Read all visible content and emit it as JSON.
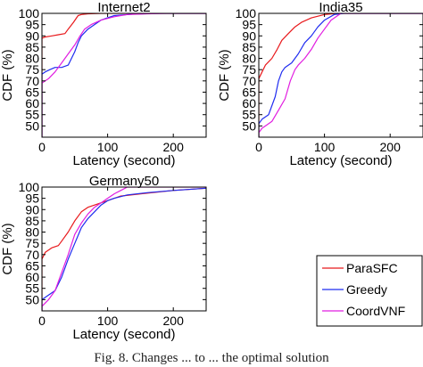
{
  "caption": "Fig. 8. Changes ... to ... the optimal solution",
  "colors": {
    "ParaSFC": "#e8191c",
    "Greedy": "#1f2cf0",
    "CoordVNF": "#e11de0"
  },
  "legend": [
    "ParaSFC",
    "Greedy",
    "CoordVNF"
  ],
  "chart_data": [
    {
      "type": "line",
      "title": "Internet2",
      "xlabel": "Latency (second)",
      "ylabel": "CDF (%)",
      "xlim": [
        0,
        250
      ],
      "ylim": [
        45,
        100
      ],
      "xticks": [
        0,
        100,
        200
      ],
      "yticks": [
        50,
        55,
        60,
        65,
        70,
        75,
        80,
        85,
        90,
        95,
        100
      ],
      "grid": false,
      "series": [
        {
          "name": "ParaSFC",
          "x": [
            0,
            0,
            5,
            15,
            25,
            35,
            40,
            48,
            55,
            60,
            70,
            90,
            120,
            250
          ],
          "y": [
            45,
            89,
            89.5,
            90,
            90.5,
            91,
            93,
            96,
            99,
            99.5,
            99.8,
            100,
            100,
            100
          ]
        },
        {
          "name": "Greedy",
          "x": [
            0,
            0,
            5,
            12,
            20,
            30,
            40,
            50,
            55,
            60,
            70,
            80,
            90,
            110,
            140,
            180,
            250
          ],
          "y": [
            45,
            73,
            74,
            75,
            76,
            76,
            77,
            83,
            87,
            90,
            93,
            95,
            97,
            99,
            99.7,
            100,
            100
          ]
        },
        {
          "name": "CoordVNF",
          "x": [
            0,
            0,
            5,
            10,
            20,
            30,
            40,
            50,
            58,
            65,
            75,
            90,
            110,
            130,
            160,
            190,
            250
          ],
          "y": [
            45,
            69,
            70,
            71,
            74,
            78,
            82,
            86,
            90,
            93,
            95,
            97,
            98.5,
            99.5,
            99.8,
            100,
            100
          ]
        }
      ]
    },
    {
      "type": "line",
      "title": "India35",
      "xlabel": "Latency (second)",
      "ylabel": "CDF (%)",
      "xlim": [
        0,
        250
      ],
      "ylim": [
        45,
        100
      ],
      "xticks": [
        0,
        100,
        200
      ],
      "yticks": [
        50,
        55,
        60,
        65,
        70,
        75,
        80,
        85,
        90,
        95,
        100
      ],
      "grid": false,
      "series": [
        {
          "name": "ParaSFC",
          "x": [
            0,
            0,
            5,
            10,
            20,
            28,
            35,
            45,
            55,
            65,
            80,
            100,
            120,
            250
          ],
          "y": [
            45,
            71,
            74,
            77,
            80,
            84,
            88,
            91,
            94,
            96,
            98,
            99.5,
            100,
            100
          ]
        },
        {
          "name": "Greedy",
          "x": [
            0,
            0,
            5,
            15,
            25,
            30,
            35,
            40,
            50,
            60,
            70,
            80,
            90,
            100,
            115,
            130,
            250
          ],
          "y": [
            45,
            51,
            53,
            55,
            63,
            70,
            74,
            76,
            78,
            82,
            87,
            90,
            94,
            97,
            99.5,
            100,
            100
          ]
        },
        {
          "name": "CoordVNF",
          "x": [
            0,
            0,
            5,
            10,
            20,
            30,
            40,
            48,
            55,
            60,
            70,
            80,
            90,
            100,
            110,
            125,
            250
          ],
          "y": [
            45,
            47,
            49,
            50,
            52,
            57,
            62,
            70,
            75,
            77,
            80,
            84,
            89,
            93,
            97,
            100,
            100
          ]
        }
      ]
    },
    {
      "type": "line",
      "title": "Germany50",
      "xlabel": "Latency (second)",
      "ylabel": "CDF (%)",
      "xlim": [
        0,
        250
      ],
      "ylim": [
        45,
        100
      ],
      "xticks": [
        0,
        100,
        200
      ],
      "yticks": [
        50,
        55,
        60,
        65,
        70,
        75,
        80,
        85,
        90,
        95,
        100
      ],
      "grid": false,
      "series": [
        {
          "name": "ParaSFC",
          "x": [
            0,
            0,
            5,
            15,
            25,
            30,
            40,
            50,
            60,
            70,
            80,
            100,
            120,
            150,
            200,
            250
          ],
          "y": [
            45,
            68,
            71,
            73,
            74,
            76,
            80,
            85,
            89,
            91,
            92,
            94,
            96,
            97,
            98.5,
            99.5
          ]
        },
        {
          "name": "Greedy",
          "x": [
            0,
            0,
            10,
            20,
            30,
            40,
            50,
            60,
            70,
            80,
            90,
            100,
            110,
            130,
            160,
            200,
            250
          ],
          "y": [
            45,
            50,
            52,
            54,
            60,
            68,
            75,
            82,
            86,
            89,
            92,
            94,
            95,
            96.5,
            97.5,
            98.5,
            99.5
          ]
        },
        {
          "name": "CoordVNF",
          "x": [
            0,
            0,
            10,
            20,
            30,
            40,
            50,
            60,
            70,
            80,
            90,
            100,
            110,
            120,
            130,
            250
          ],
          "y": [
            45,
            47,
            50,
            54,
            62,
            70,
            79,
            84,
            88,
            91,
            93,
            95,
            97,
            98.5,
            100,
            100
          ]
        }
      ]
    }
  ]
}
